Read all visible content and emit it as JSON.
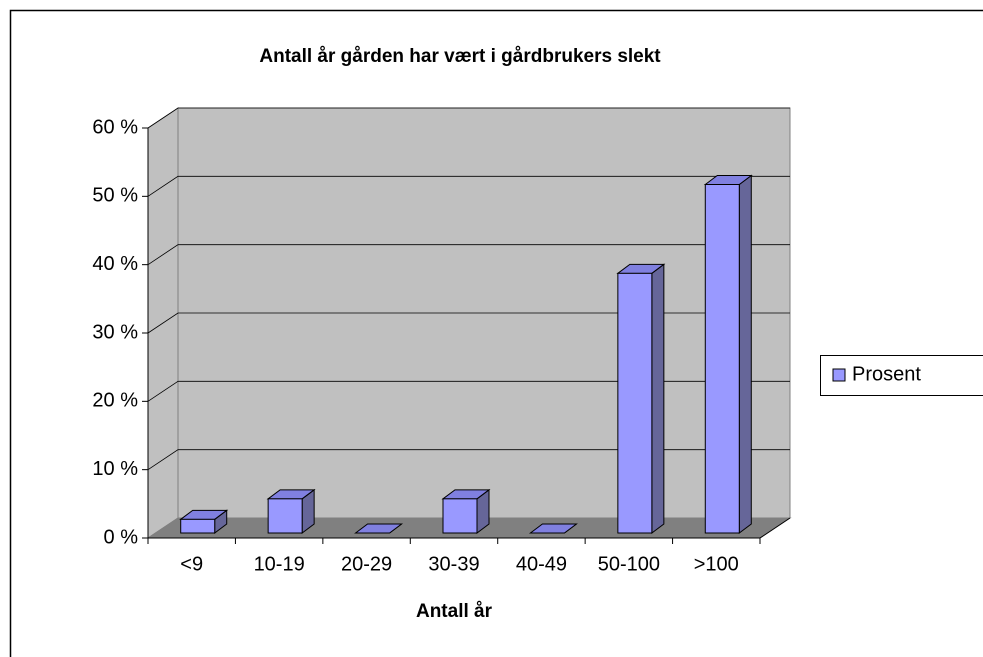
{
  "chart_data": {
    "type": "bar3d",
    "title": "Antall år gården har vært i gårdbrukers slekt",
    "x_label": "Antall år",
    "categories": [
      "<9",
      "10-19",
      "20-29",
      "30-39",
      "40-49",
      "50-100",
      ">100"
    ],
    "series": [
      {
        "name": "Prosent",
        "color": "#9999ff",
        "values": [
          2,
          5,
          0,
          5,
          0,
          38,
          51
        ]
      }
    ],
    "ylim": [
      0,
      60
    ],
    "yticks": [
      {
        "value": 0,
        "label": "0 %"
      },
      {
        "value": 10,
        "label": "10 %"
      },
      {
        "value": 20,
        "label": "20 %"
      },
      {
        "value": 30,
        "label": "30 %"
      },
      {
        "value": 40,
        "label": "40 %"
      },
      {
        "value": 50,
        "label": "50 %"
      },
      {
        "value": 60,
        "label": "60 %"
      }
    ],
    "grid": true,
    "legend": "right"
  }
}
